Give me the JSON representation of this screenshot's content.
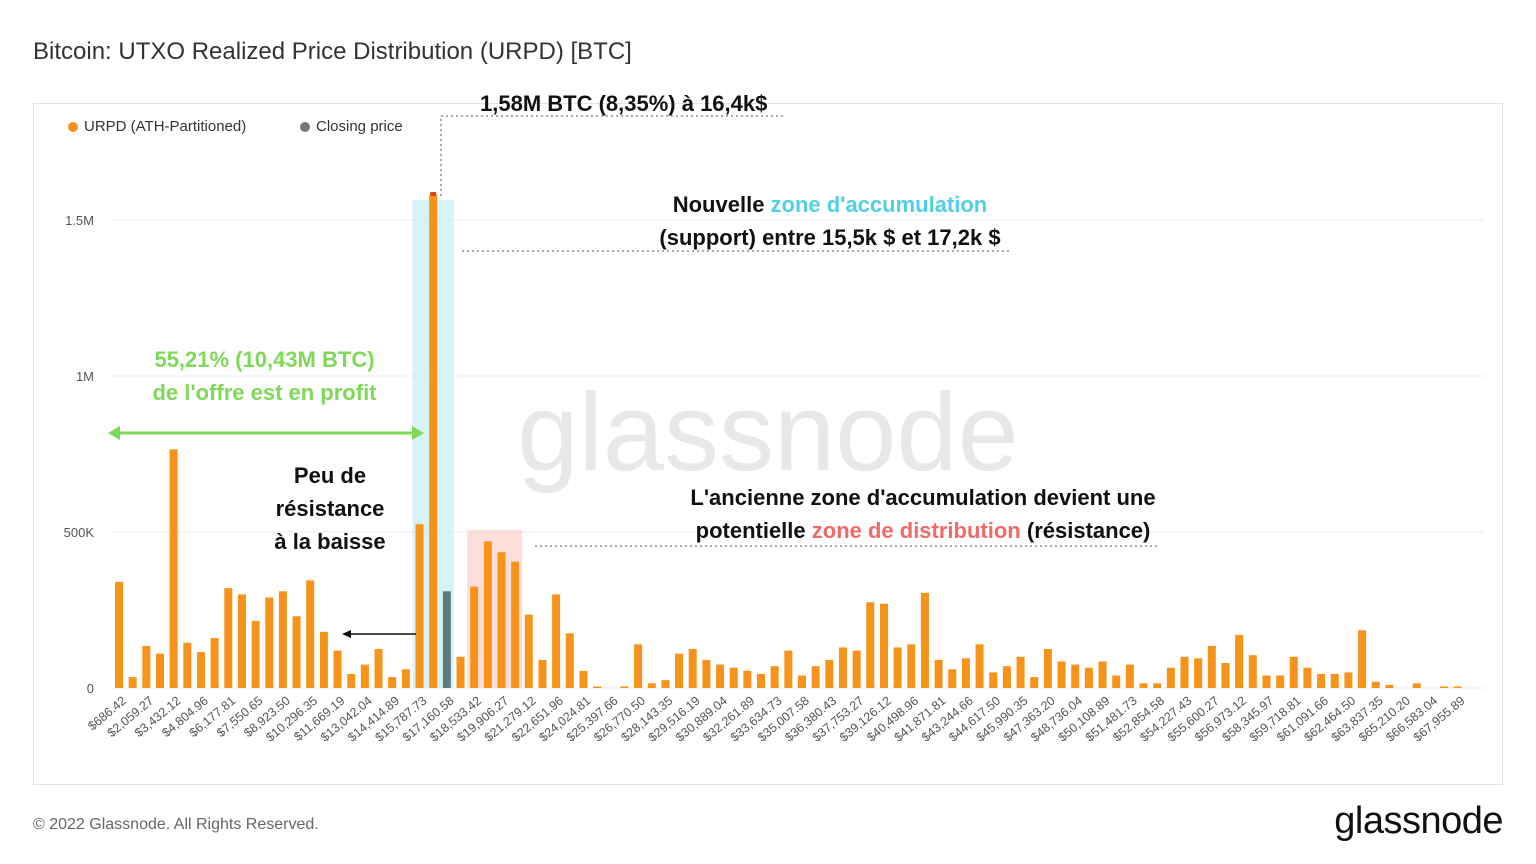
{
  "title": "Bitcoin: UTXO Realized Price Distribution (URPD) [BTC]",
  "legend": [
    {
      "label": "URPD (ATH-Partitioned)",
      "color": "#f7931a"
    },
    {
      "label": "Closing price",
      "color": "#777777"
    }
  ],
  "annotations": {
    "peak": "1,58M BTC (8,35%) à 16,4k$",
    "accum_line1_pre": "Nouvelle ",
    "accum_line1_hl": "zone d'accumulation",
    "accum_line2": "(support) entre 15,5k $ et 17,2k $",
    "profit_line1": "55,21% (10,43M BTC)",
    "profit_line2": "de l'offre est en profit",
    "resist_line1": "Peu de",
    "resist_line2": "résistance",
    "resist_line3": "à la baisse",
    "distrib_line1": "L'ancienne zone d'accumulation devient une",
    "distrib_line2_pre": "potentielle ",
    "distrib_line2_hl": "zone de distribution",
    "distrib_line2_post": " (résistance)"
  },
  "watermark": "glassnode",
  "footer": {
    "copyright": "© 2022 Glassnode. All Rights Reserved.",
    "logo": "glassnode"
  },
  "colors": {
    "bar": "#f7931a",
    "closing": "#5f7a80",
    "accum_zone": "#c9eff7",
    "distrib_zone": "#fbd8d3",
    "profit": "#7ed957",
    "accum_text": "#4fd0e4",
    "distrib_text": "#f06a6a"
  },
  "chart_data": {
    "type": "bar",
    "title": "Bitcoin: UTXO Realized Price Distribution (URPD) [BTC]",
    "xlabel": "",
    "ylabel": "",
    "ylim": [
      0,
      1700000
    ],
    "yticks": [
      0,
      500000,
      1000000,
      1500000
    ],
    "ytick_labels": [
      "0",
      "500K",
      "1M",
      "1.5M"
    ],
    "xtick_labels": [
      "$686.42",
      "$2,059.27",
      "$3,432.12",
      "$4,804.96",
      "$6,177.81",
      "$7,550.65",
      "$8,923.50",
      "$10,296.35",
      "$11,669.19",
      "$13,042.04",
      "$14,414.89",
      "$15,787.73",
      "$17,160.58",
      "$18,533.42",
      "$19,906.27",
      "$21,279.12",
      "$22,651.96",
      "$24,024.81",
      "$25,397.66",
      "$26,770.50",
      "$28,143.35",
      "$29,516.19",
      "$30,889.04",
      "$32,261.89",
      "$33,634.73",
      "$35,007.58",
      "$36,380.43",
      "$37,753.27",
      "$39,126.12",
      "$40,498.96",
      "$41,871.81",
      "$43,244.66",
      "$44,617.50",
      "$45,990.35",
      "$47,363.20",
      "$48,736.04",
      "$50,108.89",
      "$51,481.73",
      "$52,854.58",
      "$54,227.43",
      "$55,600.27",
      "$56,973.12",
      "$58,345.97",
      "$59,718.81",
      "$61,091.66",
      "$62,464.50",
      "$63,837.35",
      "$65,210.20",
      "$66,583.04",
      "$67,955.89"
    ],
    "closing_price_index": 24,
    "series": [
      {
        "name": "URPD (ATH-Partitioned)",
        "values": [
          340000,
          35000,
          135000,
          110000,
          765000,
          145000,
          115000,
          160000,
          320000,
          300000,
          215000,
          290000,
          310000,
          230000,
          345000,
          180000,
          120000,
          45000,
          75000,
          125000,
          35000,
          60000,
          525000,
          1580000,
          310000,
          100000,
          325000,
          470000,
          435000,
          405000,
          235000,
          90000,
          300000,
          175000,
          55000,
          5000,
          0,
          5000,
          140000,
          15000,
          25000,
          110000,
          125000,
          90000,
          75000,
          65000,
          55000,
          45000,
          70000,
          120000,
          40000,
          70000,
          90000,
          130000,
          120000,
          275000,
          270000,
          130000,
          140000,
          305000,
          90000,
          60000,
          95000,
          140000,
          50000,
          70000,
          100000,
          35000,
          125000,
          85000,
          75000,
          65000,
          85000,
          40000,
          75000,
          15000,
          15000,
          65000,
          100000,
          95000,
          135000,
          80000,
          170000,
          105000,
          40000,
          40000,
          100000,
          65000,
          45000,
          45000,
          50000,
          185000,
          20000,
          10000,
          0,
          15000,
          0,
          5000,
          5000
        ]
      }
    ]
  }
}
